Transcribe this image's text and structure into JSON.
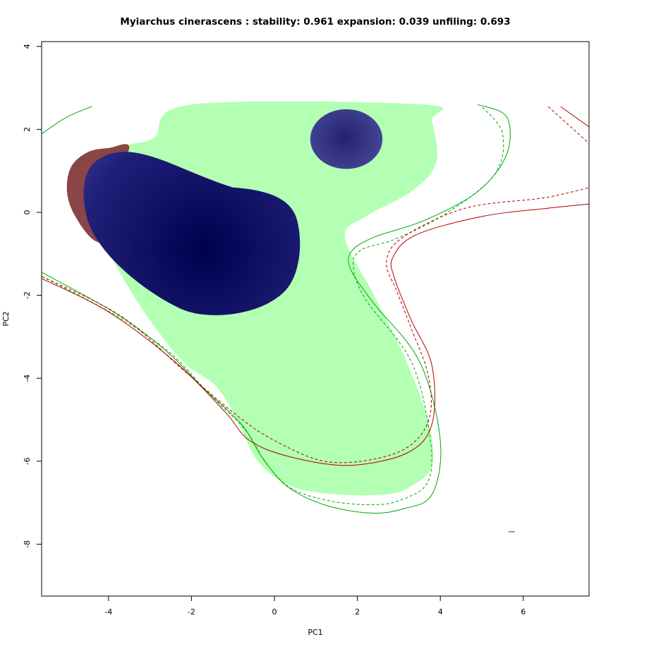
{
  "chart_data": {
    "type": "heatmap",
    "title": "Myiarchus cinerascens : stability: 0.961 expansion: 0.039 unfiling: 0.693",
    "xlabel": "PC1",
    "ylabel": "PC2",
    "xlim": [
      -5.6,
      7.6
    ],
    "ylim": [
      -9.3,
      4.1
    ],
    "x_ticks": [
      "-4",
      "-2",
      "0",
      "2",
      "4",
      "6"
    ],
    "y_ticks": [
      "4",
      "2",
      "0",
      "-2",
      "-4",
      "-6",
      "-8"
    ],
    "colors": {
      "unfilling": "#b3ffb3",
      "expansion": "#8b4546",
      "stability_high": "#000050",
      "stability_low": "#5a5aaa",
      "native_contour": "#00aa00",
      "invaded_contour": "#b00000"
    },
    "regions": {
      "unfilling": [
        [
          -2.0,
          2.6
        ],
        [
          3.6,
          2.6
        ],
        [
          3.8,
          2.2
        ],
        [
          3.9,
          1.2
        ],
        [
          3.3,
          0.5
        ],
        [
          2.2,
          -0.1
        ],
        [
          1.7,
          -0.6
        ],
        [
          2.4,
          -2.0
        ],
        [
          3.1,
          -3.4
        ],
        [
          3.7,
          -5.0
        ],
        [
          3.8,
          -6.1
        ],
        [
          3.3,
          -6.6
        ],
        [
          2.7,
          -6.8
        ],
        [
          1.5,
          -6.8
        ],
        [
          0.4,
          -6.6
        ],
        [
          -0.4,
          -6.0
        ],
        [
          -0.9,
          -5.0
        ],
        [
          -1.4,
          -4.2
        ],
        [
          -2.2,
          -3.6
        ],
        [
          -3.0,
          -2.6
        ],
        [
          -3.7,
          -1.5
        ],
        [
          -4.2,
          -0.5
        ],
        [
          -4.5,
          0.4
        ],
        [
          -4.2,
          1.2
        ],
        [
          -3.6,
          1.6
        ],
        [
          -2.9,
          1.8
        ]
      ],
      "expansion": [
        [
          -4.0,
          1.55
        ],
        [
          -3.5,
          1.55
        ],
        [
          -4.1,
          0.3
        ],
        [
          -3.7,
          -0.6
        ],
        [
          -4.3,
          -0.7
        ],
        [
          -4.8,
          -0.1
        ],
        [
          -5.0,
          0.5
        ],
        [
          -4.9,
          1.1
        ],
        [
          -4.5,
          1.45
        ]
      ],
      "stability_main_center": [
        -1.7,
        -0.9
      ],
      "stability_blob_center": [
        1.7,
        1.8
      ]
    },
    "contours": {
      "native_outer_solid": [
        [
          -5.6,
          -1.45
        ],
        [
          -3.8,
          -2.45
        ],
        [
          -2.6,
          -3.35
        ],
        [
          -1.7,
          -4.25
        ],
        [
          -0.8,
          -5.1
        ],
        [
          -0.3,
          -5.9
        ],
        [
          0.3,
          -6.6
        ],
        [
          1.2,
          -7.05
        ],
        [
          2.3,
          -7.25
        ],
        [
          3.1,
          -7.15
        ],
        [
          3.8,
          -6.8
        ],
        [
          4.0,
          -5.5
        ],
        [
          3.5,
          -3.6
        ],
        [
          2.4,
          -2.2
        ],
        [
          1.85,
          -1.4
        ],
        [
          1.85,
          -0.95
        ],
        [
          2.4,
          -0.6
        ],
        [
          3.6,
          -0.2
        ],
        [
          4.9,
          0.5
        ],
        [
          5.6,
          1.4
        ],
        [
          5.6,
          2.3
        ],
        [
          4.9,
          2.6
        ]
      ],
      "native_outer_dashed": [
        [
          -5.6,
          -1.55
        ],
        [
          -3.8,
          -2.5
        ],
        [
          -2.5,
          -3.4
        ],
        [
          -1.6,
          -4.35
        ],
        [
          -0.7,
          -5.25
        ],
        [
          -0.2,
          -6.05
        ],
        [
          0.4,
          -6.65
        ],
        [
          1.3,
          -6.95
        ],
        [
          2.3,
          -7.05
        ],
        [
          3.0,
          -6.95
        ],
        [
          3.7,
          -6.5
        ],
        [
          3.75,
          -5.4
        ],
        [
          3.3,
          -3.6
        ],
        [
          2.2,
          -2.1
        ],
        [
          1.9,
          -1.3
        ],
        [
          2.1,
          -0.9
        ],
        [
          2.9,
          -0.65
        ],
        [
          4.1,
          -0.05
        ],
        [
          5.3,
          0.9
        ],
        [
          5.5,
          1.9
        ],
        [
          5.0,
          2.55
        ]
      ],
      "native_top_left": [
        [
          -5.6,
          1.9
        ],
        [
          -5.0,
          2.3
        ],
        [
          -4.4,
          2.55
        ]
      ],
      "invaded_solid": [
        [
          -5.6,
          -1.6
        ],
        [
          -4.0,
          -2.4
        ],
        [
          -2.4,
          -3.6
        ],
        [
          -1.2,
          -4.8
        ],
        [
          -0.6,
          -5.5
        ],
        [
          0.4,
          -5.9
        ],
        [
          1.8,
          -6.1
        ],
        [
          3.2,
          -5.8
        ],
        [
          3.8,
          -5.1
        ],
        [
          3.8,
          -3.7
        ],
        [
          3.3,
          -2.6
        ],
        [
          2.9,
          -1.6
        ],
        [
          2.85,
          -1.1
        ],
        [
          3.4,
          -0.55
        ],
        [
          5.0,
          -0.1
        ],
        [
          6.6,
          0.1
        ],
        [
          7.6,
          0.2
        ]
      ],
      "invaded_dashed": [
        [
          -5.6,
          -1.55
        ],
        [
          -3.7,
          -2.5
        ],
        [
          -2.2,
          -3.8
        ],
        [
          -0.9,
          -4.9
        ],
        [
          0.0,
          -5.5
        ],
        [
          1.2,
          -6.0
        ],
        [
          2.4,
          -5.95
        ],
        [
          3.3,
          -5.6
        ],
        [
          3.75,
          -4.9
        ],
        [
          3.7,
          -3.9
        ],
        [
          3.3,
          -2.8
        ],
        [
          2.95,
          -1.9
        ],
        [
          2.7,
          -1.2
        ],
        [
          3.1,
          -0.6
        ],
        [
          4.6,
          0.1
        ],
        [
          6.5,
          0.35
        ],
        [
          7.6,
          0.6
        ]
      ],
      "invaded_top_right_solid": [
        [
          6.9,
          2.55
        ],
        [
          7.6,
          2.05
        ]
      ],
      "invaded_top_right_dashed": [
        [
          6.6,
          2.55
        ],
        [
          7.6,
          1.65
        ]
      ],
      "invaded_small_mark": [
        [
          5.65,
          -7.7
        ],
        [
          5.8,
          -7.7
        ]
      ]
    }
  }
}
